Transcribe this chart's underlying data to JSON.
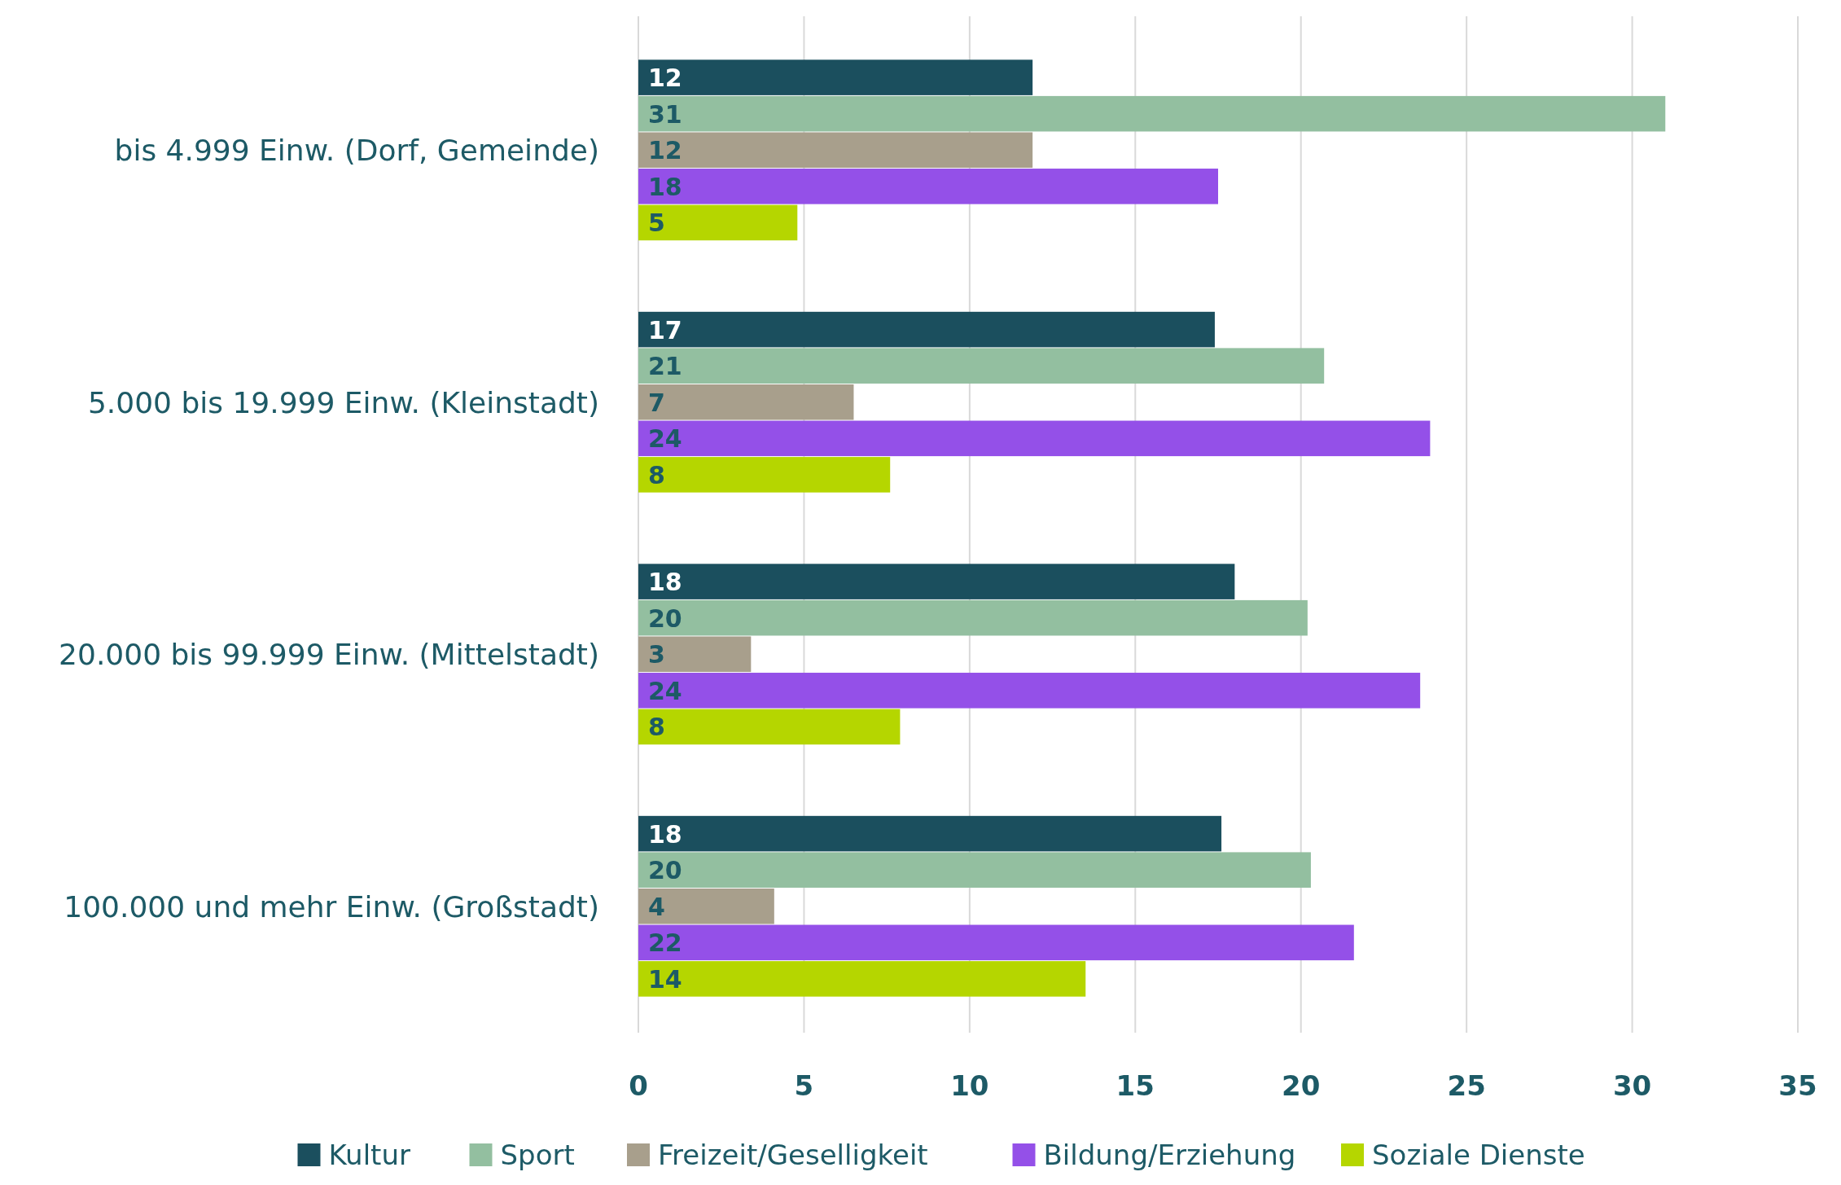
{
  "chart_data": {
    "type": "bar",
    "orientation": "horizontal",
    "categories": [
      "bis 4.999 Einw. (Dorf, Gemeinde)",
      "5.000 bis 19.999 Einw. (Kleinstadt)",
      "20.000 bis 99.999 Einw. (Mittelstadt)",
      "100.000 und mehr Einw. (Großstadt)"
    ],
    "series": [
      {
        "name": "Kultur",
        "color": "#1b4f5e",
        "values": [
          11.9,
          17.4,
          18.0,
          17.6
        ],
        "value_labels": [
          "12",
          "17",
          "18",
          "18"
        ]
      },
      {
        "name": "Sport",
        "color": "#93bfa0",
        "values": [
          31.0,
          20.7,
          20.2,
          20.3
        ],
        "value_labels": [
          "31",
          "21",
          "20",
          "20"
        ]
      },
      {
        "name": "Freizeit/Geselligkeit",
        "color": "#a89f8c",
        "values": [
          11.9,
          6.5,
          3.4,
          4.1
        ],
        "value_labels": [
          "12",
          "7",
          "3",
          "4"
        ]
      },
      {
        "name": "Bildung/Erziehung",
        "color": "#9450e8",
        "values": [
          17.5,
          23.9,
          23.6,
          21.6
        ],
        "value_labels": [
          "18",
          "24",
          "24",
          "22"
        ]
      },
      {
        "name": "Soziale Dienste",
        "color": "#b5d600",
        "values": [
          4.8,
          7.6,
          7.9,
          13.5
        ],
        "value_labels": [
          "5",
          "8",
          "8",
          "14"
        ]
      }
    ],
    "xlim": [
      0,
      35
    ],
    "xticks": [
      0,
      5,
      10,
      15,
      20,
      25,
      30,
      35
    ],
    "grid": "x",
    "legend": "bottom"
  }
}
